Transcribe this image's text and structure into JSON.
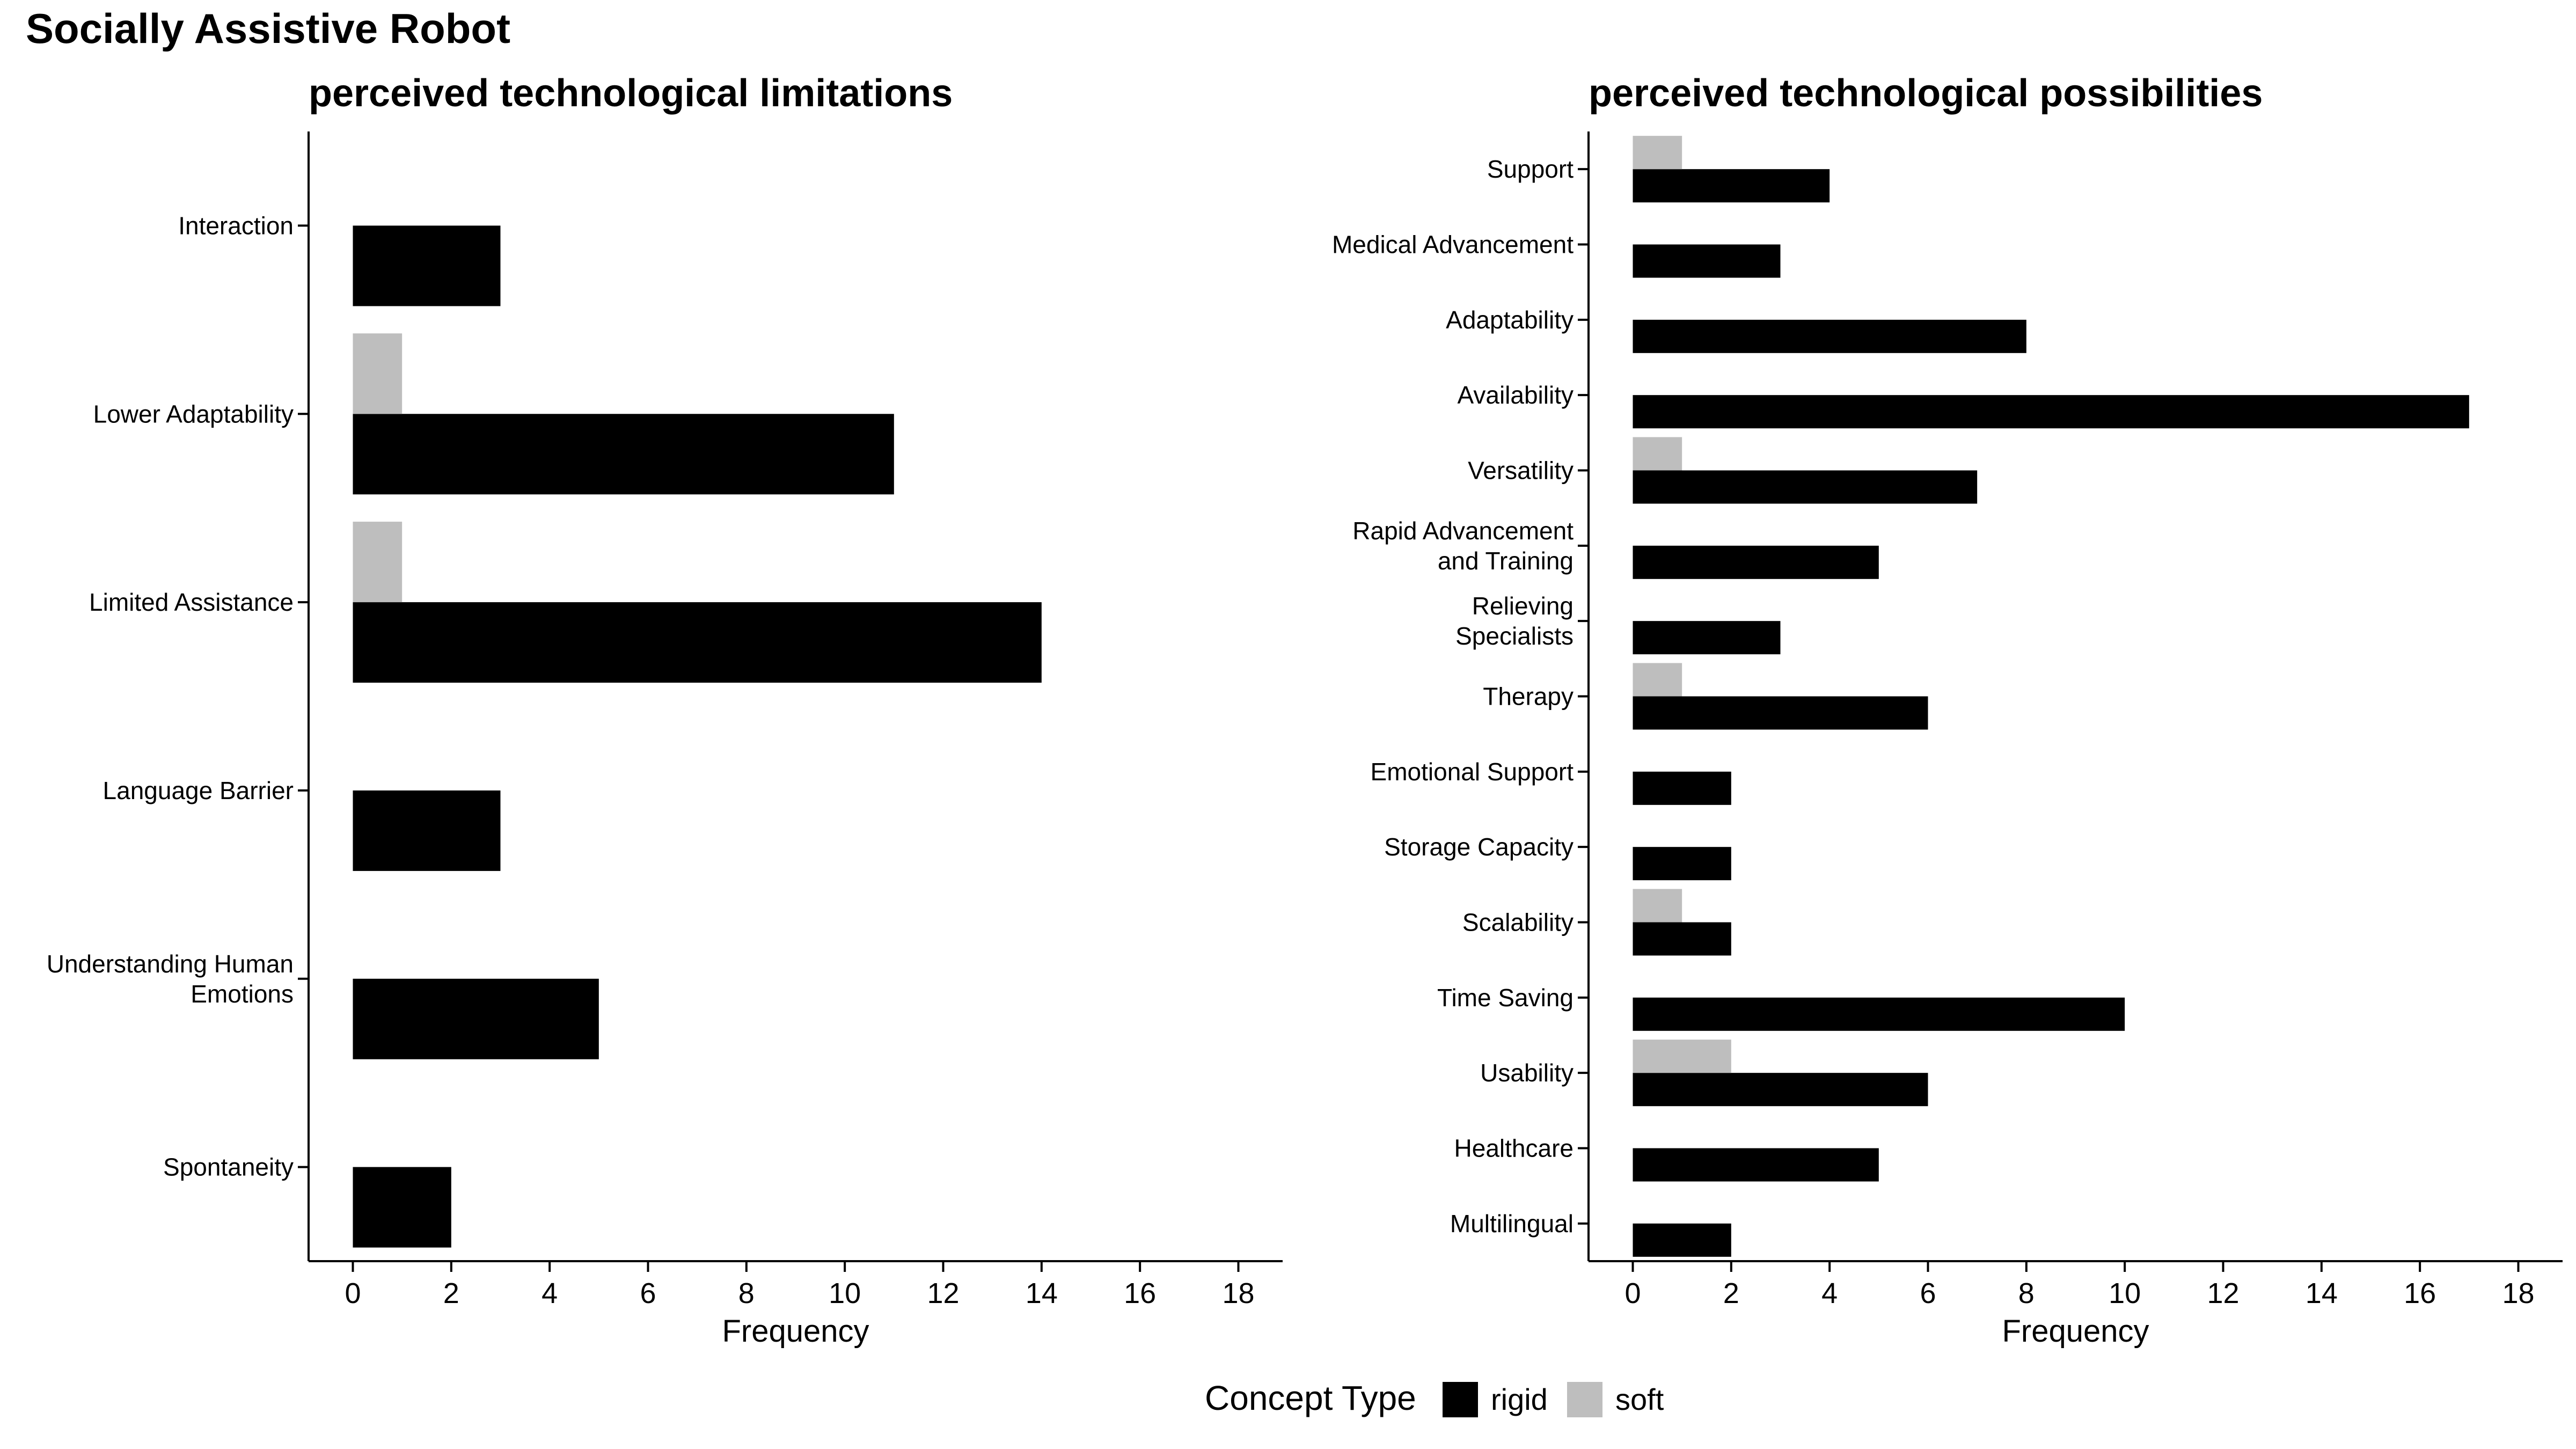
{
  "chart_data": {
    "title": "Socially Assistive Robot",
    "legend": {
      "title": "Concept Type",
      "items": [
        {
          "name": "rigid",
          "color": "#000000"
        },
        {
          "name": "soft",
          "color": "#bebebe"
        }
      ]
    },
    "panels": [
      {
        "type": "bar",
        "orientation": "horizontal",
        "title": "perceived technological limitations",
        "xlabel": "Frequency",
        "ylabel": "",
        "xlim": [
          -0.9,
          18.9
        ],
        "xticks": [
          0,
          2,
          4,
          6,
          8,
          10,
          12,
          14,
          16,
          18
        ],
        "categories": [
          "Interaction",
          "Lower Adaptability",
          "Limited Assistance",
          "Language Barrier",
          "Understanding Human\nEmotions",
          "Spontaneity"
        ],
        "series": [
          {
            "name": "rigid",
            "values": [
              3,
              11,
              14,
              3,
              5,
              2
            ]
          },
          {
            "name": "soft",
            "values": [
              0,
              1,
              1,
              0,
              0,
              0
            ]
          }
        ]
      },
      {
        "type": "bar",
        "orientation": "horizontal",
        "title": "perceived technological possibilities",
        "xlabel": "Frequency",
        "ylabel": "",
        "xlim": [
          -0.9,
          18.9
        ],
        "xticks": [
          0,
          2,
          4,
          6,
          8,
          10,
          12,
          14,
          16,
          18
        ],
        "categories": [
          "Support",
          "Medical Advancement",
          "Adaptability",
          "Availability",
          "Versatility",
          "Rapid Advancement\nand Training",
          "Relieving\nSpecialists",
          "Therapy",
          "Emotional Support",
          "Storage Capacity",
          "Scalability",
          "Time Saving",
          "Usability",
          "Healthcare",
          "Multilingual"
        ],
        "series": [
          {
            "name": "rigid",
            "values": [
              4,
              3,
              8,
              17,
              7,
              5,
              3,
              6,
              2,
              2,
              2,
              10,
              6,
              5,
              2
            ]
          },
          {
            "name": "soft",
            "values": [
              1,
              0,
              0,
              0,
              1,
              0,
              0,
              1,
              0,
              0,
              1,
              0,
              2,
              0,
              0
            ]
          }
        ]
      }
    ]
  }
}
